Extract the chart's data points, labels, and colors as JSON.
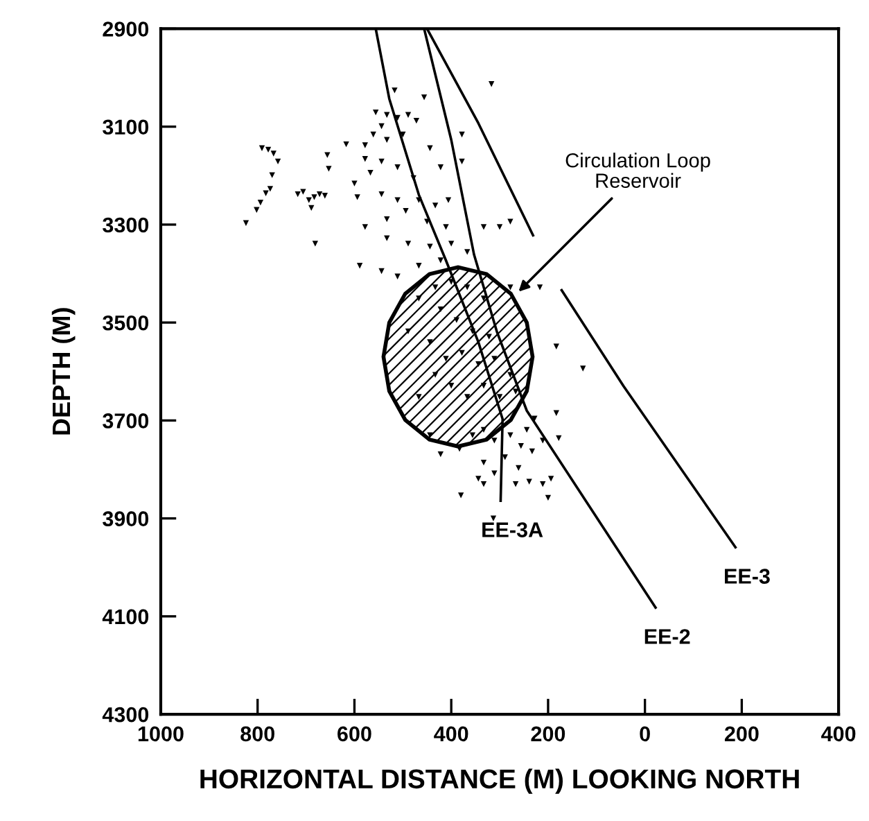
{
  "chart_data": {
    "type": "scatter",
    "xlabel": "HORIZONTAL DISTANCE (M) LOOKING NORTH",
    "ylabel": "DEPTH (M)",
    "xlim": [
      1000,
      -400
    ],
    "xticks": [
      1000,
      800,
      600,
      400,
      200,
      0,
      {
        "value": -200,
        "label": "200"
      },
      {
        "value": -400,
        "label": "400"
      }
    ],
    "ylim": [
      4300,
      2900
    ],
    "yticks": [
      2900,
      3100,
      3300,
      3500,
      3700,
      3900,
      4100,
      4300
    ],
    "grid": false,
    "annotations": [
      {
        "text": "Circulation Loop\nReservoir",
        "x": 261,
        "y": 3437
      }
    ],
    "series": [
      {
        "type": "area",
        "color": "#000000",
        "x": [
          540,
          528,
          495,
          445,
          386,
          327,
          277,
          244,
          232,
          244,
          277,
          327,
          386,
          445,
          495,
          528,
          540
        ],
        "values": [
          3570,
          3500,
          3441,
          3401,
          3387,
          3401,
          3441,
          3500,
          3570,
          3640,
          3699,
          3739,
          3753,
          3739,
          3699,
          3640,
          3570
        ]
      },
      {
        "type": "line",
        "name": "EE-3A",
        "color": "#000000",
        "x": [
          556,
          528,
          467,
          411,
          344,
          294,
          298
        ],
        "values": [
          2900,
          3043,
          3239,
          3373,
          3540,
          3697,
          3864
        ]
      },
      {
        "type": "line",
        "name": "EE-2",
        "color": "#000000",
        "x": [
          456,
          400,
          353,
          306,
          244,
          -22
        ],
        "values": [
          2900,
          3127,
          3361,
          3518,
          3680,
          4082
        ]
      },
      {
        "type": "line",
        "name": "EE-3",
        "color": "#000000",
        "x": [
          450,
          344,
          231,
          200,
          172,
          44,
          -187
        ],
        "values": [
          2900,
          3093,
          3322,
          null,
          3434,
          3630,
          3959
        ]
      },
      {
        "marker": "triangle",
        "color": "#000000",
        "x": [
          791,
          778,
          767,
          758,
          770,
          774,
          783,
          794,
          802,
          824,
          717,
          706,
          694,
          683,
          672,
          661,
          689,
          653,
          656,
          681,
          617,
          589,
          517,
          456,
          556,
          533,
          511,
          489,
          472,
          544,
          561,
          578,
          533,
          500,
          444,
          578,
          544,
          600,
          567,
          511,
          478,
          422,
          594,
          544,
          511,
          467,
          433,
          406,
          578,
          533,
          494,
          450,
          411,
          378,
          378,
          333,
          300,
          278,
          317,
          533,
          489,
          444,
          400,
          367,
          544,
          511,
          467,
          422,
          467,
          433,
          400,
          367,
          333,
          422,
          389,
          356,
          322,
          489,
          444,
          411,
          378,
          344,
          311,
          278,
          433,
          400,
          367,
          333,
          300,
          267,
          467,
          278,
          217,
          183,
          128,
          444,
          422,
          383,
          356,
          333,
          311,
          278,
          244,
          256,
          233,
          211,
          333,
          289,
          261,
          344,
          333,
          311,
          267,
          239,
          211,
          200,
          194,
          380,
          313,
          183,
          178,
          228
        ],
        "values": [
          3144,
          3147,
          3155,
          3171,
          3199,
          3227,
          3236,
          3255,
          3270,
          3297,
          3238,
          3233,
          3250,
          3244,
          3238,
          3241,
          3266,
          3186,
          3158,
          3339,
          3136,
          3384,
          3026,
          3040,
          3071,
          3076,
          3082,
          3076,
          3088,
          3099,
          3116,
          3138,
          3127,
          3116,
          3144,
          3166,
          3171,
          3216,
          3194,
          3183,
          3205,
          3183,
          3244,
          3238,
          3250,
          3250,
          3261,
          3250,
          3305,
          3289,
          3272,
          3294,
          3305,
          3116,
          3171,
          3305,
          3305,
          3294,
          3013,
          3328,
          3339,
          3345,
          3339,
          3356,
          3395,
          3406,
          3384,
          3373,
          3451,
          3428,
          3417,
          3428,
          3451,
          3473,
          3495,
          3518,
          3529,
          3518,
          3540,
          3574,
          3562,
          3585,
          3574,
          3607,
          3607,
          3629,
          3652,
          3629,
          3652,
          3641,
          3652,
          3428,
          3428,
          3549,
          3594,
          3730,
          3769,
          3758,
          3730,
          3719,
          3741,
          3730,
          3719,
          3752,
          3763,
          3741,
          3786,
          3775,
          3797,
          3819,
          3830,
          3808,
          3830,
          3825,
          3830,
          3858,
          3819,
          3853,
          3900,
          3685,
          3736,
          3696
        ]
      }
    ]
  }
}
